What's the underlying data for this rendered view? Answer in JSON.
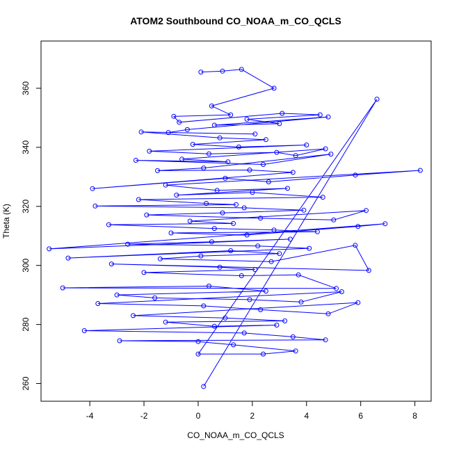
{
  "chart_data": {
    "type": "line",
    "title": "ATOM2 Southbound CO_NOAA_m_CO_QCLS",
    "xlabel": "CO_NOAA_m_CO_QCLS",
    "ylabel": "Theta (K)",
    "xlim": [
      -5.8,
      8.6
    ],
    "ylim": [
      254,
      376
    ],
    "xticks": [
      -4,
      -2,
      0,
      2,
      4,
      6,
      8
    ],
    "yticks": [
      260,
      280,
      300,
      320,
      340,
      360
    ],
    "grid": false,
    "legend": "none",
    "series_color": "#0000ff",
    "marker": "open-circle",
    "series": [
      {
        "x": [
          0.1,
          0.9,
          1.6,
          2.8,
          0.5,
          1.2,
          -0.9,
          -0.7,
          3.1,
          4.5,
          1.8,
          3.0,
          0.6,
          4.8,
          -0.4,
          -1.1,
          2.1,
          -2.1,
          0.8,
          2.5,
          -0.2,
          1.5,
          4.0,
          -1.8,
          0.4,
          2.9,
          3.6,
          4.7,
          -0.6,
          1.1,
          -2.3,
          2.4,
          4.9,
          0.2,
          -1.5,
          1.9,
          3.5,
          -3.9,
          1.0,
          2.6,
          5.8,
          8.2,
          -1.2,
          0.7,
          3.3,
          -0.8,
          2.0,
          4.6,
          -2.2,
          0.3,
          1.4,
          -3.8,
          1.7,
          3.9,
          0.9,
          -1.9,
          2.3,
          5.0,
          6.2,
          -0.3,
          1.3,
          -3.3,
          0.6,
          2.8,
          4.4,
          -1.0,
          1.8,
          5.9,
          6.9,
          -5.5,
          3.4,
          0.5,
          -2.6,
          2.2,
          4.1,
          -4.8,
          1.2,
          3.0,
          0.1,
          -1.4,
          2.7,
          5.8,
          6.3,
          -3.2,
          0.8,
          2.1,
          -2.0,
          1.6,
          3.7,
          5.1,
          -5.0,
          0.4,
          2.5,
          -3.0,
          -1.6,
          1.9,
          3.8,
          5.3,
          -3.7,
          0.2,
          2.3,
          4.8,
          5.9,
          -2.4,
          1.0,
          3.2,
          -1.2,
          0.6,
          2.9,
          -4.2,
          1.7,
          3.5,
          4.7,
          -2.9,
          0.0,
          1.3,
          3.6,
          2.4,
          0.0,
          6.6,
          0.2
        ],
        "y": [
          365.5,
          365.8,
          366.4,
          360.0,
          354.0,
          351.0,
          350.5,
          348.5,
          351.5,
          351.0,
          349.5,
          348.0,
          347.5,
          350.3,
          346.0,
          345.0,
          344.5,
          345.2,
          343.2,
          342.6,
          341.0,
          340.1,
          340.8,
          338.7,
          337.8,
          338.3,
          337.2,
          339.5,
          336.0,
          335.1,
          335.6,
          334.2,
          337.7,
          333.0,
          332.1,
          332.3,
          331.5,
          326.0,
          329.5,
          328.3,
          330.6,
          332.2,
          327.2,
          325.4,
          326.1,
          323.8,
          324.7,
          323.1,
          322.3,
          321.0,
          320.6,
          320.1,
          319.5,
          318.7,
          317.8,
          317.1,
          316.0,
          315.4,
          318.6,
          315.0,
          314.2,
          313.8,
          312.5,
          312.0,
          311.4,
          311.0,
          310.3,
          313.2,
          314.1,
          305.6,
          308.9,
          308.0,
          307.2,
          306.6,
          305.8,
          302.5,
          305.0,
          304.0,
          303.2,
          302.2,
          301.3,
          306.8,
          298.3,
          300.5,
          299.4,
          298.6,
          297.6,
          296.5,
          296.8,
          292.2,
          292.4,
          293.0,
          291.3,
          290.0,
          289.0,
          288.4,
          287.6,
          291.1,
          287.1,
          286.3,
          285.0,
          283.6,
          287.4,
          283.0,
          282.2,
          281.2,
          280.8,
          279.4,
          279.8,
          277.9,
          277.1,
          275.8,
          274.8,
          274.5,
          274.2,
          273.1,
          271.0,
          270.0,
          270.0,
          356.3,
          259.0
        ]
      }
    ]
  }
}
